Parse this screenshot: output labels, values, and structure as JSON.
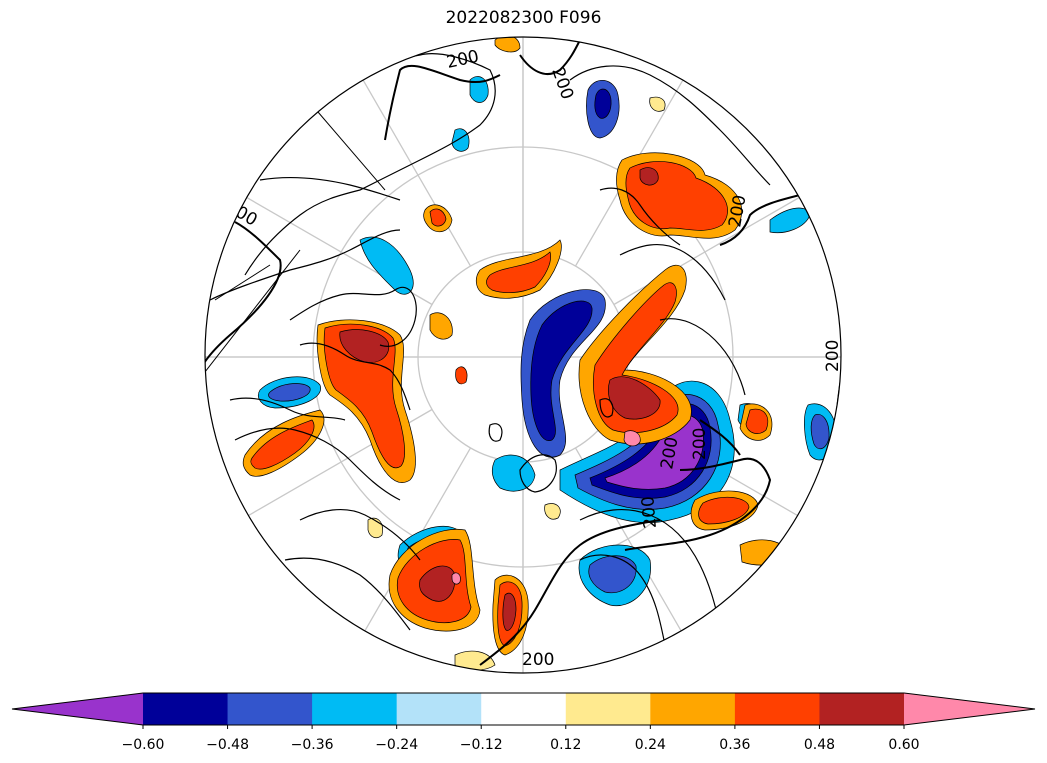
{
  "title": "2022082300 F096",
  "map": {
    "projection": "north-polar-stereographic",
    "graticule_color": "#c8c8c8",
    "coastline_color": "#000000",
    "contour_line_color": "#000000",
    "contour_labels": [
      "200",
      "200",
      "200",
      "200",
      "200",
      "200",
      "200",
      "200",
      "200"
    ]
  },
  "colorbar": {
    "extend": "both",
    "colors": [
      "#9933cc",
      "#000099",
      "#3355cc",
      "#00bbf4",
      "#b3e2f9",
      "#ffffff",
      "#ffea8f",
      "#ffa600",
      "#ff4000",
      "#b22222",
      "#ff88aa"
    ],
    "tick_labels": [
      "−0.60",
      "−0.48",
      "−0.36",
      "−0.24",
      "−0.12",
      "0.12",
      "0.24",
      "0.36",
      "0.48",
      "0.60"
    ],
    "levels": [
      -0.6,
      -0.48,
      -0.36,
      -0.24,
      -0.12,
      0.12,
      0.24,
      0.36,
      0.48,
      0.6
    ]
  }
}
